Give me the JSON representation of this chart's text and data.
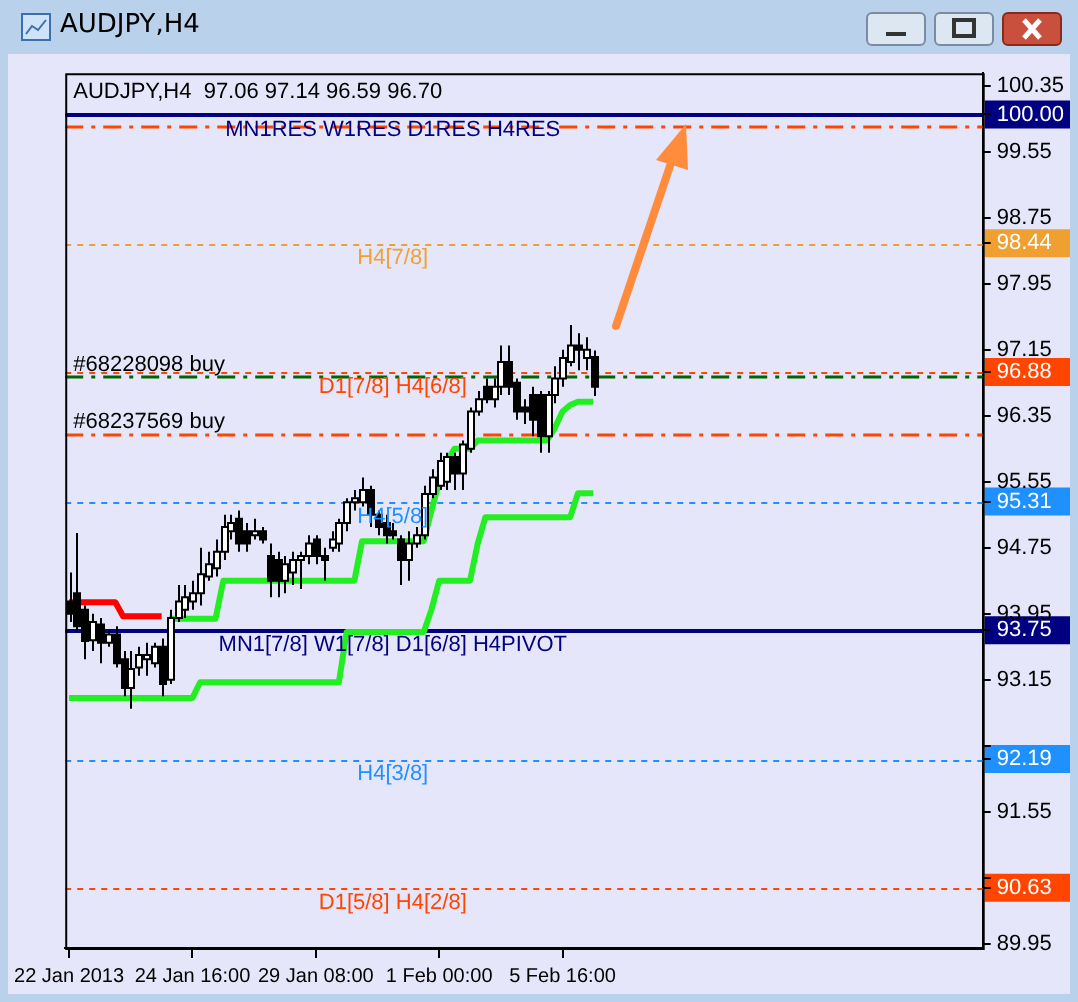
{
  "chart_data": {
    "type": "candlestick",
    "title": "AUDJPY,H4",
    "subtitle": "AUDJPY,H4  97.06 97.14 96.59 96.70",
    "categories": [
      "22 Jan 2013",
      null,
      null,
      null,
      null,
      null,
      null,
      null,
      null,
      null,
      null,
      null,
      null,
      null,
      null,
      null,
      "24 Jan 16:00",
      null,
      null,
      null,
      null,
      null,
      null,
      null,
      null,
      null,
      null,
      null,
      null,
      null,
      null,
      null,
      "29 Jan 08:00",
      null,
      null,
      null,
      null,
      null,
      null,
      null,
      null,
      null,
      null,
      null,
      null,
      null,
      null,
      null,
      "1 Feb 00:00",
      null,
      null,
      null,
      null,
      null,
      null,
      null,
      null,
      null,
      null,
      null,
      null,
      null,
      null,
      null,
      "5 Feb 16:00",
      null,
      null,
      null,
      null,
      null,
      null,
      null,
      null,
      null,
      null,
      null,
      null,
      null,
      null,
      null,
      null,
      null,
      null,
      null,
      null,
      null,
      null,
      null,
      null,
      null,
      null,
      null,
      null,
      null,
      null,
      null,
      null,
      null,
      null,
      null,
      null,
      null,
      null,
      null,
      null,
      null,
      null,
      null,
      null,
      null,
      null,
      null,
      null,
      null,
      null,
      null,
      null,
      null,
      null
    ],
    "ohlc": [
      [
        94.1,
        94.45,
        93.85,
        93.95
      ],
      [
        94.2,
        94.93,
        93.73,
        93.8
      ],
      [
        94.0,
        94.05,
        93.4,
        93.62
      ],
      [
        93.63,
        93.95,
        93.5,
        93.85
      ],
      [
        93.82,
        93.9,
        93.35,
        93.6
      ],
      [
        93.6,
        93.75,
        93.55,
        93.7
      ],
      [
        93.7,
        93.8,
        93.3,
        93.35
      ],
      [
        93.4,
        93.5,
        92.95,
        93.05
      ],
      [
        93.05,
        93.5,
        92.8,
        93.28
      ],
      [
        93.3,
        93.55,
        93.2,
        93.45
      ],
      [
        93.4,
        93.6,
        93.2,
        93.45
      ],
      [
        93.35,
        93.6,
        93.3,
        93.55
      ],
      [
        93.55,
        93.65,
        92.95,
        93.1
      ],
      [
        93.15,
        94.0,
        93.1,
        93.9
      ],
      [
        93.9,
        94.3,
        93.85,
        94.1
      ],
      [
        94.0,
        94.3,
        93.9,
        94.15
      ],
      [
        94.1,
        94.35,
        94.0,
        94.2
      ],
      [
        94.2,
        94.75,
        94.05,
        94.43
      ],
      [
        94.4,
        94.7,
        94.35,
        94.55
      ],
      [
        94.5,
        94.85,
        94.4,
        94.7
      ],
      [
        94.7,
        95.15,
        94.6,
        95.0
      ],
      [
        94.95,
        95.15,
        94.85,
        95.05
      ],
      [
        95.1,
        95.2,
        94.7,
        94.8
      ],
      [
        94.95,
        95.05,
        94.7,
        94.8
      ],
      [
        94.9,
        95.1,
        94.85,
        94.95
      ],
      [
        94.95,
        95.0,
        94.8,
        94.85
      ],
      [
        94.65,
        94.8,
        94.15,
        94.35
      ],
      [
        94.6,
        94.7,
        94.15,
        94.35
      ],
      [
        94.35,
        94.65,
        94.2,
        94.55
      ],
      [
        94.45,
        94.7,
        94.3,
        94.6
      ],
      [
        94.6,
        94.7,
        94.25,
        94.65
      ],
      [
        94.65,
        94.9,
        94.55,
        94.8
      ],
      [
        94.85,
        94.9,
        94.55,
        94.65
      ],
      [
        94.65,
        94.75,
        94.35,
        94.6
      ],
      [
        94.75,
        94.95,
        94.7,
        94.85
      ],
      [
        94.8,
        95.1,
        94.7,
        95.05
      ],
      [
        95.05,
        95.35,
        94.95,
        95.3
      ],
      [
        95.3,
        95.45,
        95.2,
        95.35
      ],
      [
        95.3,
        95.6,
        95.25,
        95.45
      ],
      [
        95.45,
        95.5,
        95.0,
        95.15
      ],
      [
        95.15,
        95.2,
        94.9,
        95.0
      ],
      [
        95.05,
        95.15,
        94.8,
        94.9
      ],
      [
        94.95,
        95.05,
        94.85,
        94.9
      ],
      [
        94.85,
        94.9,
        94.3,
        94.6
      ],
      [
        94.6,
        94.95,
        94.35,
        94.8
      ],
      [
        94.8,
        95.0,
        94.75,
        94.9
      ],
      [
        94.9,
        95.5,
        94.85,
        95.4
      ],
      [
        95.4,
        95.7,
        95.35,
        95.6
      ],
      [
        95.5,
        95.9,
        95.45,
        95.8
      ],
      [
        95.55,
        95.9,
        95.45,
        95.85
      ],
      [
        95.85,
        95.9,
        95.45,
        95.65
      ],
      [
        95.65,
        96.05,
        95.45,
        96.0
      ],
      [
        95.95,
        96.45,
        95.9,
        96.4
      ],
      [
        96.4,
        96.65,
        96.35,
        96.55
      ],
      [
        96.7,
        96.8,
        96.5,
        96.55
      ],
      [
        96.55,
        96.8,
        96.45,
        96.7
      ],
      [
        96.7,
        97.2,
        96.6,
        97.0
      ],
      [
        97.0,
        97.2,
        96.6,
        96.7
      ],
      [
        96.75,
        96.8,
        96.3,
        96.4
      ],
      [
        96.45,
        96.55,
        96.25,
        96.4
      ],
      [
        96.6,
        96.7,
        96.1,
        96.3
      ],
      [
        96.6,
        96.65,
        95.9,
        96.1
      ],
      [
        96.1,
        96.65,
        95.9,
        96.6
      ],
      [
        96.6,
        96.95,
        96.5,
        96.8
      ],
      [
        96.8,
        97.15,
        96.7,
        97.05
      ],
      [
        97.0,
        97.45,
        96.95,
        97.2
      ],
      [
        97.2,
        97.35,
        96.9,
        97.15
      ],
      [
        97.05,
        97.3,
        96.9,
        97.15
      ],
      [
        97.06,
        97.14,
        96.59,
        96.7
      ],
      null,
      null,
      null,
      null,
      null,
      null,
      null,
      null,
      null,
      null,
      null,
      null,
      null,
      null,
      null,
      null,
      null,
      null,
      null,
      null,
      null,
      null,
      null,
      null,
      null,
      null,
      null,
      null,
      null,
      null,
      null,
      null,
      null,
      null,
      null,
      null,
      null,
      null,
      null,
      null,
      null,
      null,
      null,
      null,
      null,
      null,
      null,
      null,
      null,
      null
    ],
    "series": [
      {
        "type": "line",
        "color": "#ff0000",
        "values": [
          94.09,
          94.09,
          94.09,
          94.09,
          94.09,
          94.09,
          94.09,
          93.92,
          93.92,
          93.92,
          93.92,
          93.92,
          93.92,
          null,
          null,
          null,
          null,
          null,
          null,
          null,
          null,
          null,
          null,
          null,
          null,
          null,
          null,
          null,
          null,
          null,
          null,
          null,
          null,
          null,
          null,
          null,
          null,
          null,
          null,
          null,
          null,
          null,
          null,
          null,
          null,
          null,
          null,
          null,
          null,
          null,
          null,
          null,
          null,
          null,
          null,
          null,
          null,
          null,
          null,
          null,
          null,
          null,
          null,
          null,
          null,
          null,
          null,
          null,
          null,
          null,
          null,
          null,
          null,
          null,
          null,
          null,
          null,
          null,
          null,
          null,
          null,
          null,
          null,
          null,
          null,
          null,
          null,
          null,
          null,
          null,
          null,
          null,
          null,
          null,
          null,
          null,
          null,
          null,
          null,
          null,
          null,
          null,
          null,
          null,
          null,
          null,
          null,
          null,
          null,
          null,
          null,
          null,
          null,
          null,
          null,
          null,
          null,
          null,
          null
        ]
      },
      {
        "type": "line",
        "color": "#22ee22",
        "values": [
          null,
          null,
          null,
          null,
          null,
          null,
          null,
          null,
          null,
          null,
          null,
          null,
          null,
          93.89,
          93.89,
          93.89,
          93.89,
          93.89,
          93.89,
          93.89,
          94.35,
          94.35,
          94.35,
          94.35,
          94.35,
          94.35,
          94.35,
          94.35,
          94.35,
          94.35,
          94.35,
          94.35,
          94.35,
          94.35,
          94.35,
          94.35,
          94.35,
          94.35,
          94.83,
          94.83,
          94.83,
          94.83,
          94.83,
          94.83,
          94.83,
          94.83,
          94.83,
          95.2,
          95.55,
          95.8,
          95.95,
          95.95,
          95.95,
          96.05,
          96.05,
          96.05,
          96.05,
          96.05,
          96.05,
          96.05,
          96.05,
          96.05,
          96.05,
          96.2,
          96.4,
          96.48,
          96.52,
          96.52,
          96.52,
          null,
          null,
          null,
          null,
          null,
          null,
          null,
          null,
          null,
          null,
          null,
          null,
          null,
          null,
          null,
          null,
          null,
          null,
          null,
          null,
          null,
          null,
          null,
          null,
          null,
          null,
          null,
          null,
          null,
          null,
          null,
          null,
          null,
          null,
          null,
          null,
          null,
          null,
          null,
          null,
          null,
          null,
          null,
          null,
          null,
          null,
          null,
          null,
          null,
          null
        ]
      },
      {
        "type": "line",
        "color": "#22ee22",
        "values": [
          92.93,
          92.93,
          92.93,
          92.93,
          92.93,
          92.93,
          92.93,
          92.93,
          92.93,
          92.93,
          92.93,
          92.93,
          92.93,
          92.93,
          92.93,
          92.93,
          92.93,
          93.12,
          93.12,
          93.12,
          93.12,
          93.12,
          93.12,
          93.12,
          93.12,
          93.12,
          93.12,
          93.12,
          93.12,
          93.12,
          93.12,
          93.12,
          93.12,
          93.12,
          93.12,
          93.12,
          93.73,
          93.73,
          93.73,
          93.73,
          93.73,
          93.73,
          93.73,
          93.73,
          93.73,
          93.73,
          93.73,
          94.0,
          94.35,
          94.35,
          94.35,
          94.35,
          94.35,
          94.8,
          95.12,
          95.12,
          95.12,
          95.12,
          95.12,
          95.12,
          95.12,
          95.12,
          95.12,
          95.12,
          95.12,
          95.12,
          95.41,
          95.41,
          95.41,
          null,
          null,
          null,
          null,
          null,
          null,
          null,
          null,
          null,
          null,
          null,
          null,
          null,
          null,
          null,
          null,
          null,
          null,
          null,
          null,
          null,
          null,
          null,
          null,
          null,
          null,
          null,
          null,
          null,
          null,
          null,
          null,
          null,
          null,
          null,
          null,
          null,
          null,
          null,
          null,
          null,
          null,
          null,
          null,
          null,
          null,
          null,
          null,
          null,
          null
        ]
      }
    ],
    "ylim": [
      89.9,
      100.5
    ],
    "yticks": [
      89.95,
      {
        "value": 90.63,
        "label": "90.63"
      },
      {
        "value": 90.75,
        "label": null
      },
      91.55,
      {
        "value": 92.19,
        "label": "92.19"
      },
      {
        "value": 92.35,
        "label": null
      },
      93.15,
      {
        "value": 93.75,
        "label": "93.75"
      },
      93.95,
      94.75,
      {
        "value": 95.31,
        "label": "95.31"
      },
      95.55,
      96.35,
      {
        "value": 96.88,
        "label": "96.88"
      },
      97.15,
      97.95,
      {
        "value": 98.44,
        "label": "98.44"
      },
      98.75,
      99.55,
      {
        "value": 100.0,
        "label": "100.00"
      },
      100.35
    ],
    "ref_lines": [
      {
        "axis": "y",
        "value": 100.0,
        "label": "MN1RES W1RES D1RES H4RES",
        "color": "#000080",
        "line_style": "solid"
      },
      {
        "axis": "y",
        "value": 99.86,
        "color": "#ff4500",
        "line_style": "dashed"
      },
      {
        "axis": "y",
        "value": 98.44,
        "label": "H4[7/8]",
        "color": "#f0a030",
        "line_style": "dotted"
      },
      {
        "axis": "y",
        "value": 96.88,
        "label": "D1[7/8] H4[6/8]",
        "color": "#ff4500",
        "line_style": "dotted"
      },
      {
        "axis": "y",
        "value": 96.82,
        "color": "#006400",
        "line_style": "dashed"
      },
      {
        "axis": "y",
        "value": 96.13,
        "color": "#ff4500",
        "line_style": "dashed"
      },
      {
        "axis": "y",
        "value": 95.31,
        "label": "H4[5/8]",
        "color": "#1e90ff",
        "line_style": "dotted"
      },
      {
        "axis": "y",
        "value": 93.75,
        "label": "MN1[7/8] W1[7/8] D1[6/8] H4PIVOT",
        "color": "#000080",
        "line_style": "solid"
      },
      {
        "axis": "y",
        "value": 92.19,
        "label": "H4[3/8]",
        "color": "#1e90ff",
        "line_style": "dotted"
      },
      {
        "axis": "y",
        "value": 90.63,
        "label": "D1[5/8] H4[2/8]",
        "color": "#ff4500",
        "line_style": "dotted"
      }
    ],
    "annotations": [
      {
        "text": "#68228098 buy",
        "y": 96.82
      },
      {
        "text": "#68237569 buy",
        "y": 96.13
      }
    ]
  }
}
